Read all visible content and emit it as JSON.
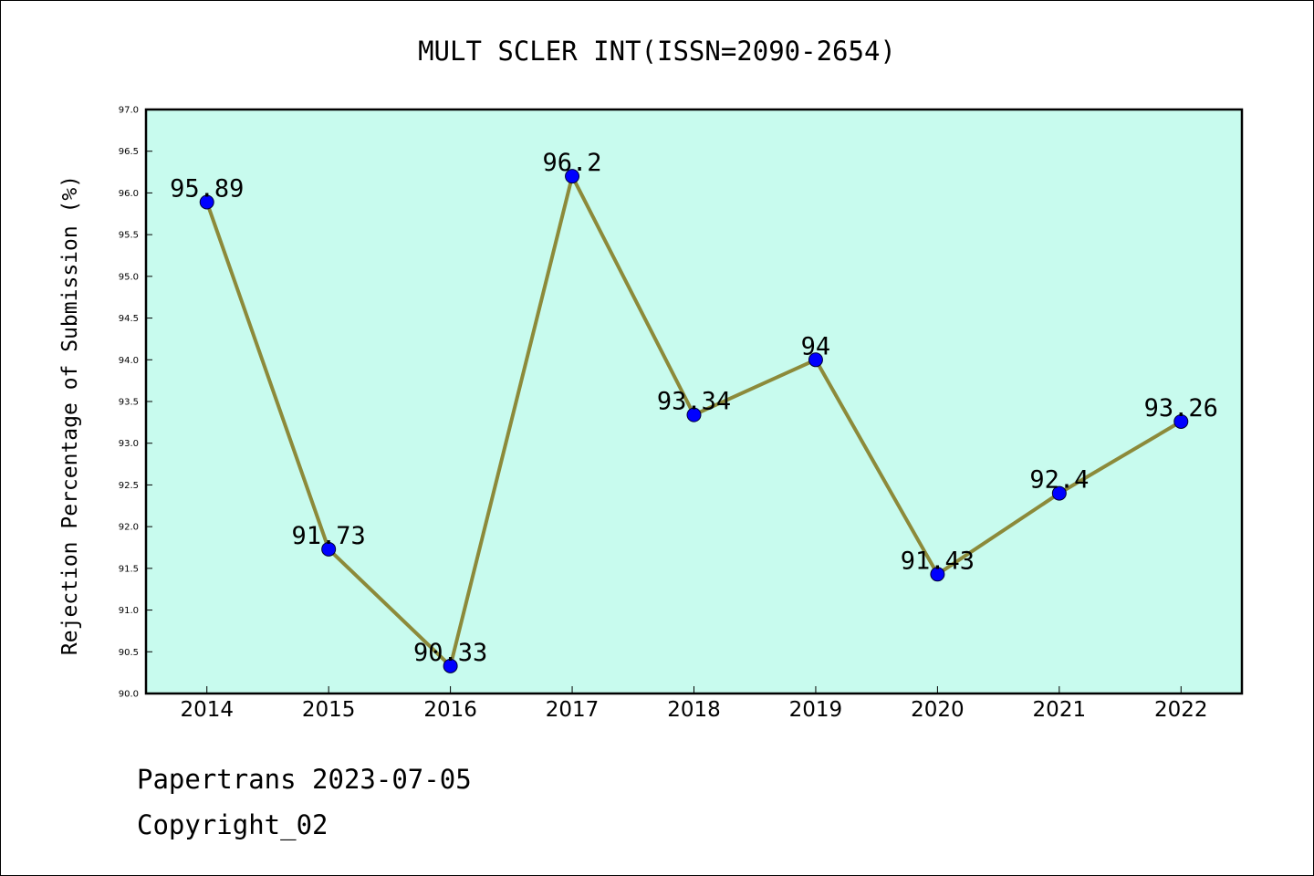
{
  "chart_data": {
    "type": "line",
    "title": "MULT SCLER INT(ISSN=2090-2654)",
    "xlabel": "",
    "ylabel": "Rejection Percentage of Submission (%)",
    "categories": [
      "2014",
      "2015",
      "2016",
      "2017",
      "2018",
      "2019",
      "2020",
      "2021",
      "2022"
    ],
    "values": [
      95.89,
      91.73,
      90.33,
      96.2,
      93.34,
      94,
      91.43,
      92.4,
      93.26
    ],
    "value_labels": [
      "95.89",
      "91.73",
      "90.33",
      "96.2",
      "93.34",
      "94",
      "91.43",
      "92.4",
      "93.26"
    ],
    "ylim": [
      90.0,
      97.0
    ],
    "yticks": [
      "90.0",
      "90.5",
      "91.0",
      "91.5",
      "92.0",
      "92.5",
      "93.0",
      "93.5",
      "94.0",
      "94.5",
      "95.0",
      "95.5",
      "96.0",
      "96.5",
      "97.0"
    ],
    "grid": false,
    "legend": "none",
    "colors": {
      "plot_background": "#c8fbee",
      "line": "#8c8a3a",
      "marker": "#0000ff"
    }
  },
  "footer": {
    "line1": "Papertrans 2023-07-05",
    "line2": "Copyright_02"
  }
}
